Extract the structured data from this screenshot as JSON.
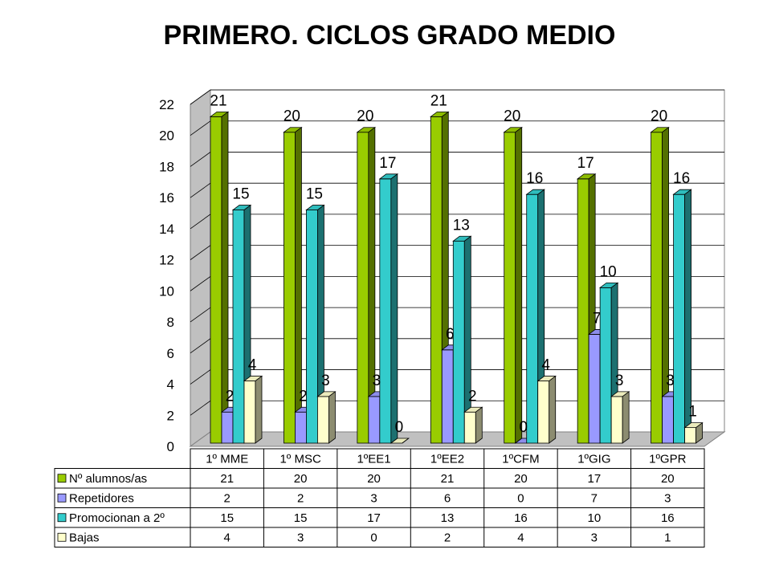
{
  "chart_data": {
    "type": "bar",
    "title": "PRIMERO. CICLOS GRADO MEDIO",
    "categories": [
      "1º MME",
      "1º MSC",
      "1ºEE1",
      "1ºEE2",
      "1ºCFM",
      "1ºGIG",
      "1ºGPR"
    ],
    "series": [
      {
        "name": "Nº alumnos/as",
        "values": [
          21,
          20,
          20,
          21,
          20,
          17,
          20
        ],
        "color": "#99cc00"
      },
      {
        "name": "Repetidores",
        "values": [
          2,
          2,
          3,
          6,
          0,
          7,
          3
        ],
        "color": "#9999ff"
      },
      {
        "name": "Promocionan a 2º",
        "values": [
          15,
          15,
          17,
          13,
          16,
          10,
          16
        ],
        "color": "#33cccc"
      },
      {
        "name": "Bajas",
        "values": [
          4,
          3,
          0,
          2,
          4,
          3,
          1
        ],
        "color": "#ffffcc"
      }
    ],
    "ylim": [
      0,
      22
    ],
    "yticks": [
      0,
      2,
      4,
      6,
      8,
      10,
      12,
      14,
      16,
      18,
      20,
      22
    ],
    "grid": true,
    "legend": "data-table-below",
    "style": "3d-clustered-column"
  }
}
